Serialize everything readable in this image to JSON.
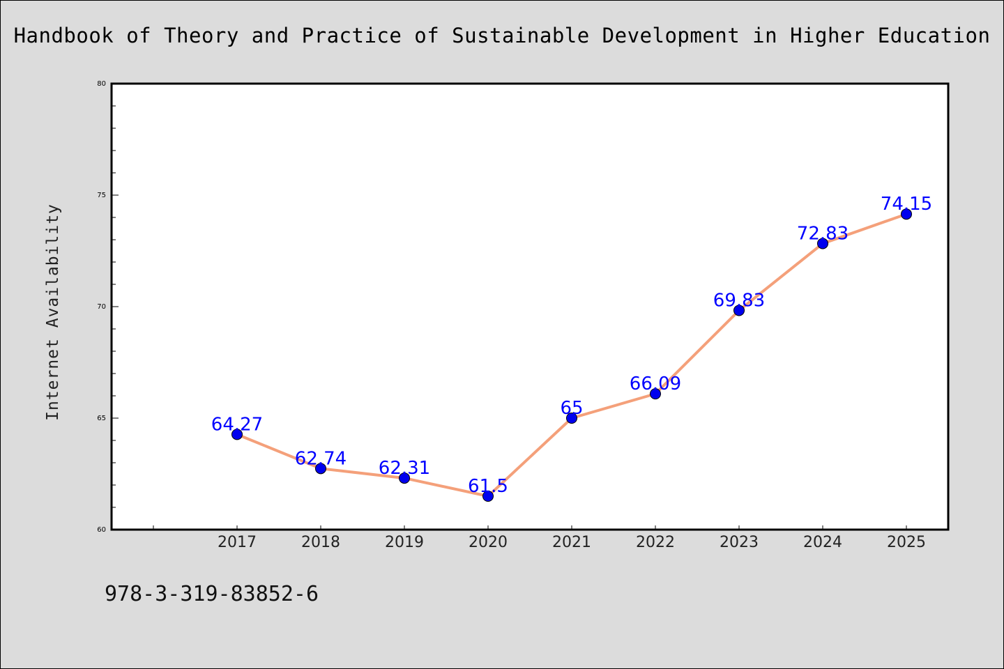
{
  "chart_data": {
    "type": "line",
    "title": "Handbook of Theory and Practice of Sustainable Development in Higher Education",
    "xlabel": "",
    "ylabel": "Internet Availability",
    "categories": [
      "2017",
      "2018",
      "2019",
      "2020",
      "2021",
      "2022",
      "2023",
      "2024",
      "2025"
    ],
    "series": [
      {
        "values": [
          64.27,
          62.74,
          62.31,
          61.5,
          65,
          66.09,
          69.83,
          72.83,
          74.15
        ]
      }
    ],
    "data_labels": [
      "64.27",
      "62.74",
      "62.31",
      "61.5",
      "65",
      "66.09",
      "69.83",
      "72.83",
      "74.15"
    ],
    "ylim": [
      60,
      80
    ],
    "yticks": [
      60,
      65,
      70,
      75,
      80
    ],
    "grid": false,
    "line_color": "#f4a07a",
    "marker_color": "#0000ee",
    "label_color": "#0000ff"
  },
  "footer": {
    "isbn": "978-3-319-83852-6"
  }
}
